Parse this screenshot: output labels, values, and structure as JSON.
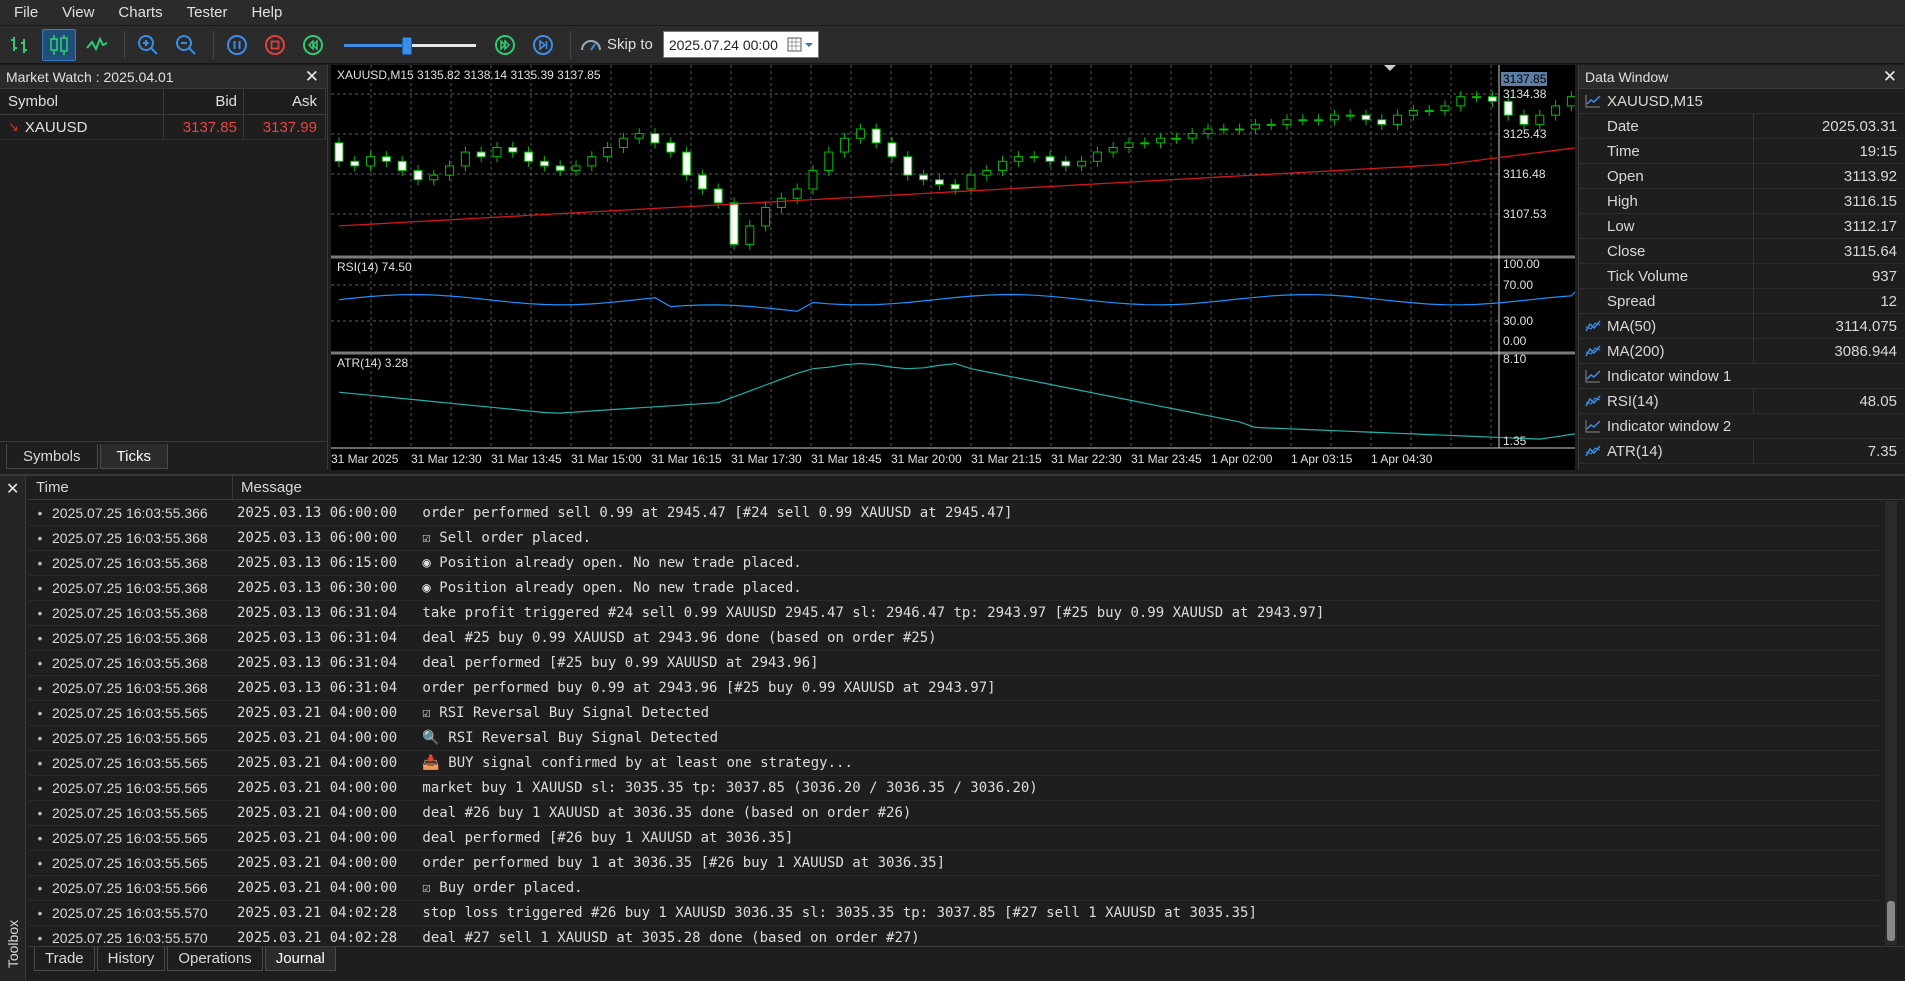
{
  "menu": [
    "File",
    "View",
    "Charts",
    "Tester",
    "Help"
  ],
  "toolbar": {
    "buttons": [
      "bar-chart-icon",
      "candlestick-icon",
      "line-chart-icon",
      "zoom-in-icon",
      "zoom-out-icon",
      "pause-icon",
      "stop-icon",
      "rewind-icon",
      "fast-forward-icon",
      "step-forward-icon"
    ],
    "speed_level": 0.48,
    "skip_label": "Skip to",
    "skip_value": "2025.07.24 00:00"
  },
  "market_watch": {
    "title": "Market Watch : 2025.04.01",
    "columns": [
      "Symbol",
      "Bid",
      "Ask"
    ],
    "rows": [
      {
        "symbol": "XAUUSD",
        "bid": "3137.85",
        "ask": "3137.99"
      }
    ],
    "tabs": [
      "Symbols",
      "Ticks"
    ],
    "active_tab": "Ticks"
  },
  "chart": {
    "header": "XAUUSD,M15  3135.82 3138.14 3135.39 3137.85",
    "current_price": "3137.85",
    "price_ticks": [
      "3134.38",
      "3125.43",
      "3116.48",
      "3107.53"
    ],
    "rsi_label": "RSI(14) 74.50",
    "rsi_ticks": [
      "100.00",
      "70.00",
      "30.00",
      "0.00"
    ],
    "atr_label": "ATR(14) 3.28",
    "atr_ticks": [
      "8.10",
      "1.35"
    ],
    "time_labels": [
      "31 Mar 2025",
      "31 Mar 12:30",
      "31 Mar 13:45",
      "31 Mar 15:00",
      "31 Mar 16:15",
      "31 Mar 17:30",
      "31 Mar 18:45",
      "31 Mar 20:00",
      "31 Mar 21:15",
      "31 Mar 22:30",
      "31 Mar 23:45",
      "1 Apr 02:00",
      "1 Apr 03:15",
      "1 Apr 04:30"
    ],
    "colors": {
      "bull": "#00c000",
      "bear": "#ffffff",
      "ma": "#d01818",
      "rsi": "#1e90ff",
      "atr": "#20b2aa",
      "grid": "#808080"
    }
  },
  "data_window": {
    "title": "Data Window",
    "symbol": "XAUUSD,M15",
    "rows": [
      {
        "label": "Date",
        "value": "2025.03.31"
      },
      {
        "label": "Time",
        "value": "19:15"
      },
      {
        "label": "Open",
        "value": "3113.92"
      },
      {
        "label": "High",
        "value": "3116.15"
      },
      {
        "label": "Low",
        "value": "3112.17"
      },
      {
        "label": "Close",
        "value": "3115.64"
      },
      {
        "label": "Tick Volume",
        "value": "937"
      },
      {
        "label": "Spread",
        "value": "12"
      }
    ],
    "ma50_label": "MA(50)",
    "ma50_value": "3114.075",
    "ma200_label": "MA(200)",
    "ma200_value": "3086.944",
    "ind1_label": "Indicator window 1",
    "rsi_label": "RSI(14)",
    "rsi_value": "48.05",
    "ind2_label": "Indicator window 2",
    "atr_label": "ATR(14)",
    "atr_value": "7.35"
  },
  "journal": {
    "columns": [
      "Time",
      "Message"
    ],
    "side_label": "Toolbox",
    "rows": [
      {
        "time": "2025.07.25 16:03:55.366",
        "msg": "2025.03.13 06:00:00   order performed sell 0.99 at 2945.47 [#24 sell 0.99 XAUUSD at 2945.47]"
      },
      {
        "time": "2025.07.25 16:03:55.368",
        "msg": "2025.03.13 06:00:00   ☑ Sell order placed."
      },
      {
        "time": "2025.07.25 16:03:55.368",
        "msg": "2025.03.13 06:15:00   ◉ Position already open. No new trade placed."
      },
      {
        "time": "2025.07.25 16:03:55.368",
        "msg": "2025.03.13 06:30:00   ◉ Position already open. No new trade placed."
      },
      {
        "time": "2025.07.25 16:03:55.368",
        "msg": "2025.03.13 06:31:04   take profit triggered #24 sell 0.99 XAUUSD 2945.47 sl: 2946.47 tp: 2943.97 [#25 buy 0.99 XAUUSD at 2943.97]"
      },
      {
        "time": "2025.07.25 16:03:55.368",
        "msg": "2025.03.13 06:31:04   deal #25 buy 0.99 XAUUSD at 2943.96 done (based on order #25)"
      },
      {
        "time": "2025.07.25 16:03:55.368",
        "msg": "2025.03.13 06:31:04   deal performed [#25 buy 0.99 XAUUSD at 2943.96]"
      },
      {
        "time": "2025.07.25 16:03:55.368",
        "msg": "2025.03.13 06:31:04   order performed buy 0.99 at 2943.96 [#25 buy 0.99 XAUUSD at 2943.97]"
      },
      {
        "time": "2025.07.25 16:03:55.565",
        "msg": "2025.03.21 04:00:00   ☑ RSI Reversal Buy Signal Detected"
      },
      {
        "time": "2025.07.25 16:03:55.565",
        "msg": "2025.03.21 04:00:00   🔍 RSI Reversal Buy Signal Detected"
      },
      {
        "time": "2025.07.25 16:03:55.565",
        "msg": "2025.03.21 04:00:00   📥 BUY signal confirmed by at least one strategy..."
      },
      {
        "time": "2025.07.25 16:03:55.565",
        "msg": "2025.03.21 04:00:00   market buy 1 XAUUSD sl: 3035.35 tp: 3037.85 (3036.20 / 3036.35 / 3036.20)"
      },
      {
        "time": "2025.07.25 16:03:55.565",
        "msg": "2025.03.21 04:00:00   deal #26 buy 1 XAUUSD at 3036.35 done (based on order #26)"
      },
      {
        "time": "2025.07.25 16:03:55.565",
        "msg": "2025.03.21 04:00:00   deal performed [#26 buy 1 XAUUSD at 3036.35]"
      },
      {
        "time": "2025.07.25 16:03:55.565",
        "msg": "2025.03.21 04:00:00   order performed buy 1 at 3036.35 [#26 buy 1 XAUUSD at 3036.35]"
      },
      {
        "time": "2025.07.25 16:03:55.566",
        "msg": "2025.03.21 04:00:00   ☑ Buy order placed."
      },
      {
        "time": "2025.07.25 16:03:55.570",
        "msg": "2025.03.21 04:02:28   stop loss triggered #26 buy 1 XAUUSD 3036.35 sl: 3035.35 tp: 3037.85 [#27 sell 1 XAUUSD at 3035.35]"
      },
      {
        "time": "2025.07.25 16:03:55.570",
        "msg": "2025.03.21 04:02:28   deal #27 sell 1 XAUUSD at 3035.28 done (based on order #27)"
      }
    ],
    "tabs": [
      "Trade",
      "History",
      "Operations",
      "Journal"
    ],
    "active_tab": "Journal"
  }
}
